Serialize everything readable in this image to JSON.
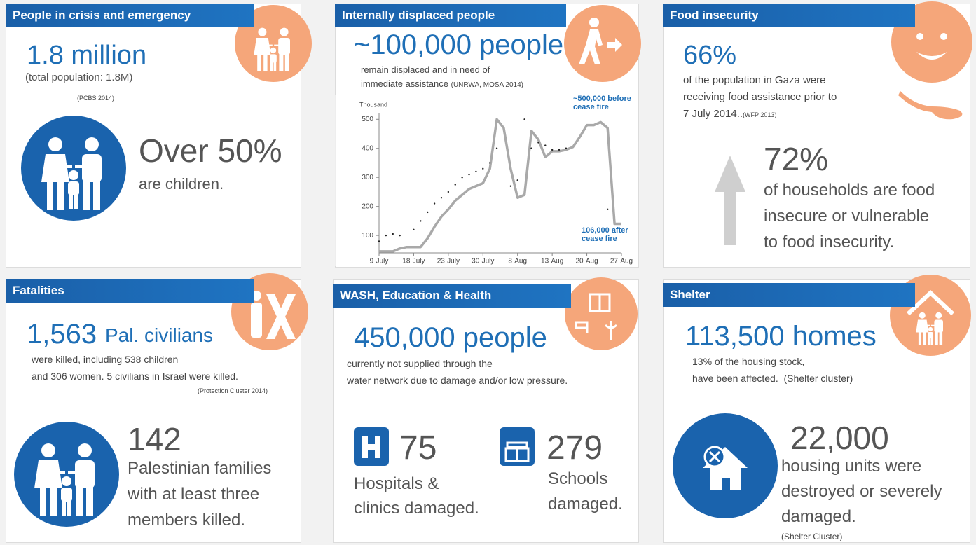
{
  "crisis": {
    "title": "People in crisis and emergency",
    "headline": "1.8 million",
    "note": "(total population: 1.8M)",
    "source": "(PCBS 2014)",
    "stat": "Over 50%",
    "stat_text": "are children."
  },
  "displaced": {
    "title": "Internally displaced people",
    "headline": "~100,000 people",
    "lines": [
      "remain displaced and in need of",
      "immediate assistance"
    ],
    "source": "(UNRWA, MOSA 2014)"
  },
  "food": {
    "title": "Food insecurity",
    "headline": "66%",
    "lines": [
      "of the population in Gaza were",
      "receiving food assistance prior to",
      "7 July 2014.."
    ],
    "source": "(WFP 2013)",
    "stat": "72%",
    "stat_lines": [
      "of households are food",
      "insecure or vulnerable",
      "to food insecurity."
    ]
  },
  "fatalities": {
    "title": "Fatalities",
    "headline": "1,563",
    "headline_unit": "Pal. civilians",
    "lines": [
      "were killed, including 538 children",
      "and 306 women. 5 civilians in Israel were killed."
    ],
    "source": "(Protection Cluster 2014)",
    "stat": "142",
    "stat_lines": [
      "Palestinian families",
      "with at least three",
      "members killed."
    ]
  },
  "wash": {
    "title": "WASH, Education & Health",
    "headline": "450,000 people",
    "lines": [
      "currently not supplied through the",
      "water network due to damage and/or low pressure."
    ],
    "items": [
      {
        "value": "75",
        "lines": [
          "Hospitals &",
          "clinics damaged."
        ]
      },
      {
        "value": "279",
        "lines": [
          "Schools",
          "damaged."
        ]
      }
    ]
  },
  "shelter": {
    "title": "Shelter",
    "headline": "113,500 homes",
    "lines": [
      "13% of the housing stock,",
      "have been affected.  (Shelter cluster)"
    ],
    "stat": "22,000",
    "stat_lines": [
      "housing units were",
      "destroyed or severely",
      "damaged."
    ],
    "source": "(Shelter Cluster)"
  },
  "chart_data": {
    "type": "line",
    "y_label": "Thousand",
    "categories": [
      "9-July",
      null,
      null,
      null,
      null,
      "18-July",
      null,
      null,
      null,
      null,
      "23-July",
      null,
      null,
      null,
      null,
      "30-July",
      null,
      null,
      null,
      null,
      "8-Aug",
      null,
      null,
      null,
      null,
      "13-Aug",
      null,
      null,
      null,
      null,
      "20-Aug",
      null,
      null,
      null,
      null,
      "27-Aug"
    ],
    "series": [
      {
        "color": "#a9a9a9",
        "values": [
          45,
          45,
          45,
          55,
          60,
          60,
          60,
          90,
          130,
          165,
          190,
          220,
          240,
          260,
          270,
          280,
          330,
          500,
          470,
          330,
          230,
          240,
          460,
          430,
          370,
          390,
          390,
          395,
          405,
          440,
          480,
          480,
          490,
          470,
          140,
          140
        ]
      },
      {
        "color": "#222222",
        "style": "dotted",
        "values": [
          80,
          100,
          105,
          100,
          null,
          120,
          150,
          180,
          210,
          230,
          250,
          275,
          300,
          310,
          320,
          330,
          350,
          400,
          null,
          270,
          290,
          500,
          400,
          420,
          410,
          395,
          395,
          400,
          null,
          null,
          null,
          null,
          null,
          190,
          null,
          null
        ]
      }
    ],
    "ylim": [
      40,
      520
    ],
    "yticks": [
      100,
      200,
      300,
      400,
      500
    ],
    "annotations": [
      "~500,000 before cease fire",
      "106,000 after cease fire"
    ]
  }
}
